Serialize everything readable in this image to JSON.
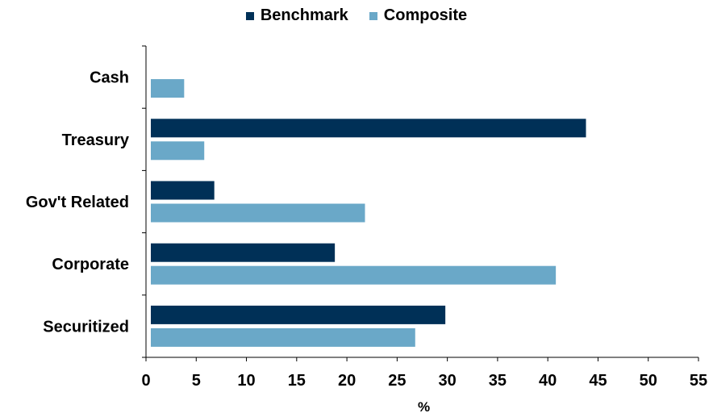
{
  "chart_data": {
    "type": "bar",
    "orientation": "horizontal",
    "categories": [
      "Cash",
      "Treasury",
      "Gov't Related",
      "Corporate",
      "Securitized"
    ],
    "series": [
      {
        "name": "Benchmark",
        "color": "#003057",
        "values": [
          0,
          43.8,
          6.8,
          18.8,
          29.8
        ]
      },
      {
        "name": "Composite",
        "color": "#6aa8c8",
        "values": [
          3.8,
          5.8,
          21.8,
          40.8,
          26.8
        ]
      }
    ],
    "xlabel": "%",
    "xlim": [
      0,
      55
    ],
    "xticks": [
      "0",
      "5",
      "10",
      "15",
      "20",
      "25",
      "30",
      "35",
      "40",
      "45",
      "50",
      "55"
    ],
    "grid": false,
    "legend_position": "top-center"
  }
}
